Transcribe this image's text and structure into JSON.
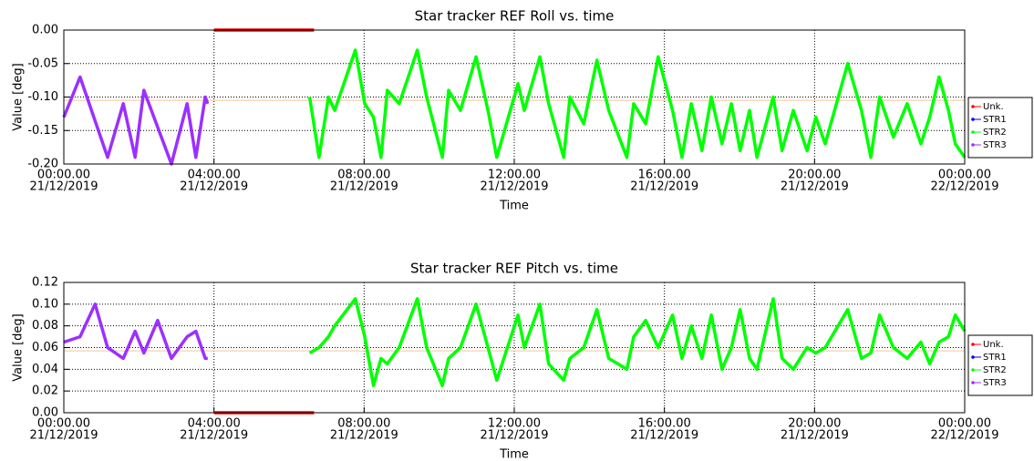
{
  "chart_data": [
    {
      "type": "line",
      "title": "Star tracker REF Roll vs. time",
      "xlabel": "Time",
      "ylabel": "Value [deg]",
      "xlim": [
        "2019-12-21T00:00",
        "2019-12-22T00:00"
      ],
      "xticks": [
        {
          "value": "2019-12-21T00:00",
          "label": [
            "00:00.00",
            "21/12/2019"
          ]
        },
        {
          "value": "2019-12-21T04:00",
          "label": [
            "04:00.00",
            "21/12/2019"
          ]
        },
        {
          "value": "2019-12-21T08:00",
          "label": [
            "08:00.00",
            "21/12/2019"
          ]
        },
        {
          "value": "2019-12-21T12:00",
          "label": [
            "12:00.00",
            "21/12/2019"
          ]
        },
        {
          "value": "2019-12-21T16:00",
          "label": [
            "16:00.00",
            "21/12/2019"
          ]
        },
        {
          "value": "2019-12-21T20:00",
          "label": [
            "20:00.00",
            "21/12/2019"
          ]
        },
        {
          "value": "2019-12-22T00:00",
          "label": [
            "00:00.00",
            "22/12/2019"
          ]
        }
      ],
      "ylim": [
        -0.2,
        0
      ],
      "yticks": [
        {
          "value": 0,
          "label": "0.00"
        },
        -0.05,
        {
          "value": -0.1,
          "label": "-0.10"
        },
        -0.15,
        {
          "value": -0.2,
          "label": "-0.20"
        }
      ],
      "grid": true,
      "legend": "right",
      "reference_line": {
        "value": -0.105,
        "color": "#f7c89b"
      },
      "series": [
        {
          "name": "Unk.",
          "color": "#ff0000",
          "x": [
            "2019-12-21T04:00",
            "2019-12-21T06:40"
          ],
          "values": [
            0,
            0
          ]
        },
        {
          "name": "STR1",
          "color": "#0000ff",
          "x": [],
          "values": []
        },
        {
          "name": "STR2",
          "color": "#00ff00",
          "x": [
            "2019-12-21T06:33",
            "2019-12-21T06:48",
            "2019-12-21T07:03",
            "2019-12-21T07:13",
            "2019-12-21T07:46",
            "2019-12-21T08:01",
            "2019-12-21T08:15",
            "2019-12-21T08:27",
            "2019-12-21T08:37",
            "2019-12-21T08:56",
            "2019-12-21T09:25",
            "2019-12-21T09:40",
            "2019-12-21T10:05",
            "2019-12-21T10:15",
            "2019-12-21T10:34",
            "2019-12-21T10:59",
            "2019-12-21T11:18",
            "2019-12-21T11:32",
            "2019-12-21T12:06",
            "2019-12-21T12:16",
            "2019-12-21T12:41",
            "2019-12-21T12:55",
            "2019-12-21T13:19",
            "2019-12-21T13:29",
            "2019-12-21T13:51",
            "2019-12-21T14:12",
            "2019-12-21T14:31",
            "2019-12-21T15:00",
            "2019-12-21T15:11",
            "2019-12-21T15:30",
            "2019-12-21T15:50",
            "2019-12-21T16:13",
            "2019-12-21T16:28",
            "2019-12-21T16:43",
            "2019-12-21T17:00",
            "2019-12-21T17:15",
            "2019-12-21T17:32",
            "2019-12-21T17:47",
            "2019-12-21T18:01",
            "2019-12-21T18:16",
            "2019-12-21T18:28",
            "2019-12-21T18:54",
            "2019-12-21T19:08",
            "2019-12-21T19:26",
            "2019-12-21T19:48",
            "2019-12-21T20:02",
            "2019-12-21T20:17",
            "2019-12-21T20:53",
            "2019-12-21T21:15",
            "2019-12-21T21:30",
            "2019-12-21T21:44",
            "2019-12-21T22:06",
            "2019-12-21T22:28",
            "2019-12-21T22:50",
            "2019-12-21T23:04",
            "2019-12-21T23:19",
            "2019-12-21T23:34",
            "2019-12-21T23:45",
            "2019-12-22T00:00"
          ],
          "values": [
            -0.1,
            -0.19,
            -0.1,
            -0.12,
            -0.03,
            -0.11,
            -0.13,
            -0.19,
            -0.09,
            -0.11,
            -0.03,
            -0.1,
            -0.19,
            -0.09,
            -0.12,
            -0.04,
            -0.12,
            -0.19,
            -0.08,
            -0.12,
            -0.04,
            -0.11,
            -0.19,
            -0.1,
            -0.14,
            -0.045,
            -0.12,
            -0.19,
            -0.11,
            -0.14,
            -0.04,
            -0.12,
            -0.19,
            -0.11,
            -0.18,
            -0.1,
            -0.17,
            -0.11,
            -0.18,
            -0.12,
            -0.19,
            -0.1,
            -0.18,
            -0.12,
            -0.18,
            -0.13,
            -0.17,
            -0.05,
            -0.12,
            -0.19,
            -0.1,
            -0.16,
            -0.11,
            -0.17,
            -0.13,
            -0.07,
            -0.12,
            -0.17,
            -0.19
          ]
        },
        {
          "name": "STR3",
          "color": "#9b30ff",
          "x": [
            "2019-12-21T00:00",
            "2019-12-21T00:26",
            "2019-12-21T01:10",
            "2019-12-21T01:35",
            "2019-12-21T01:54",
            "2019-12-21T02:08",
            "2019-12-21T02:52",
            "2019-12-21T03:17",
            "2019-12-21T03:31",
            "2019-12-21T03:46",
            "2019-12-21T03:50"
          ],
          "values": [
            -0.13,
            -0.07,
            -0.19,
            -0.11,
            -0.19,
            -0.09,
            -0.2,
            -0.11,
            -0.19,
            -0.1,
            -0.11
          ]
        }
      ]
    },
    {
      "type": "line",
      "title": "Star tracker REF Pitch vs. time",
      "xlabel": "Time",
      "ylabel": "Value [deg]",
      "xlim": [
        "2019-12-21T00:00",
        "2019-12-22T00:00"
      ],
      "xticks": [
        {
          "value": "2019-12-21T00:00",
          "label": [
            "00:00.00",
            "21/12/2019"
          ]
        },
        {
          "value": "2019-12-21T04:00",
          "label": [
            "04:00.00",
            "21/12/2019"
          ]
        },
        {
          "value": "2019-12-21T08:00",
          "label": [
            "08:00.00",
            "21/12/2019"
          ]
        },
        {
          "value": "2019-12-21T12:00",
          "label": [
            "12:00.00",
            "21/12/2019"
          ]
        },
        {
          "value": "2019-12-21T16:00",
          "label": [
            "16:00.00",
            "21/12/2019"
          ]
        },
        {
          "value": "2019-12-21T20:00",
          "label": [
            "20:00.00",
            "21/12/2019"
          ]
        },
        {
          "value": "2019-12-22T00:00",
          "label": [
            "00:00.00",
            "22/12/2019"
          ]
        }
      ],
      "ylim": [
        0,
        0.12
      ],
      "yticks": [
        {
          "value": 0,
          "label": "0.00"
        },
        0.02,
        0.04,
        0.06,
        0.08,
        {
          "value": 0.1,
          "label": "0.10"
        },
        0.12
      ],
      "grid": true,
      "legend": "right",
      "reference_line": {
        "value": 0.057,
        "color": "#f7c89b"
      },
      "series": [
        {
          "name": "Unk.",
          "color": "#ff0000",
          "x": [
            "2019-12-21T04:00",
            "2019-12-21T06:40"
          ],
          "values": [
            0,
            0
          ]
        },
        {
          "name": "STR1",
          "color": "#0000ff",
          "x": [],
          "values": []
        },
        {
          "name": "STR2",
          "color": "#00ff00",
          "x": [
            "2019-12-21T06:33",
            "2019-12-21T06:48",
            "2019-12-21T07:03",
            "2019-12-21T07:13",
            "2019-12-21T07:46",
            "2019-12-21T08:01",
            "2019-12-21T08:15",
            "2019-12-21T08:27",
            "2019-12-21T08:37",
            "2019-12-21T08:56",
            "2019-12-21T09:25",
            "2019-12-21T09:40",
            "2019-12-21T10:05",
            "2019-12-21T10:15",
            "2019-12-21T10:34",
            "2019-12-21T10:59",
            "2019-12-21T11:18",
            "2019-12-21T11:32",
            "2019-12-21T12:06",
            "2019-12-21T12:16",
            "2019-12-21T12:41",
            "2019-12-21T12:55",
            "2019-12-21T13:19",
            "2019-12-21T13:29",
            "2019-12-21T13:51",
            "2019-12-21T14:12",
            "2019-12-21T14:31",
            "2019-12-21T15:00",
            "2019-12-21T15:11",
            "2019-12-21T15:30",
            "2019-12-21T15:50",
            "2019-12-21T16:13",
            "2019-12-21T16:28",
            "2019-12-21T16:43",
            "2019-12-21T17:00",
            "2019-12-21T17:15",
            "2019-12-21T17:32",
            "2019-12-21T17:47",
            "2019-12-21T18:01",
            "2019-12-21T18:16",
            "2019-12-21T18:28",
            "2019-12-21T18:54",
            "2019-12-21T19:08",
            "2019-12-21T19:26",
            "2019-12-21T19:48",
            "2019-12-21T20:02",
            "2019-12-21T20:17",
            "2019-12-21T20:53",
            "2019-12-21T21:15",
            "2019-12-21T21:30",
            "2019-12-21T21:44",
            "2019-12-21T22:06",
            "2019-12-21T22:28",
            "2019-12-21T22:50",
            "2019-12-21T23:04",
            "2019-12-21T23:19",
            "2019-12-21T23:34",
            "2019-12-21T23:45",
            "2019-12-22T00:00"
          ],
          "values": [
            0.055,
            0.06,
            0.07,
            0.08,
            0.105,
            0.07,
            0.025,
            0.05,
            0.045,
            0.06,
            0.105,
            0.06,
            0.025,
            0.05,
            0.06,
            0.1,
            0.06,
            0.03,
            0.09,
            0.06,
            0.1,
            0.045,
            0.03,
            0.05,
            0.06,
            0.095,
            0.05,
            0.04,
            0.07,
            0.085,
            0.06,
            0.09,
            0.05,
            0.08,
            0.05,
            0.09,
            0.04,
            0.06,
            0.095,
            0.05,
            0.04,
            0.105,
            0.05,
            0.04,
            0.06,
            0.055,
            0.06,
            0.095,
            0.05,
            0.055,
            0.09,
            0.06,
            0.05,
            0.065,
            0.045,
            0.065,
            0.07,
            0.09,
            0.075
          ]
        },
        {
          "name": "STR3",
          "color": "#9b30ff",
          "x": [
            "2019-12-21T00:00",
            "2019-12-21T00:26",
            "2019-12-21T00:50",
            "2019-12-21T01:10",
            "2019-12-21T01:35",
            "2019-12-21T01:54",
            "2019-12-21T02:08",
            "2019-12-21T02:30",
            "2019-12-21T02:52",
            "2019-12-21T03:17",
            "2019-12-21T03:31",
            "2019-12-21T03:46",
            "2019-12-21T03:50"
          ],
          "values": [
            0.065,
            0.07,
            0.1,
            0.06,
            0.05,
            0.075,
            0.055,
            0.085,
            0.05,
            0.07,
            0.075,
            0.05,
            0.05
          ]
        }
      ]
    }
  ]
}
